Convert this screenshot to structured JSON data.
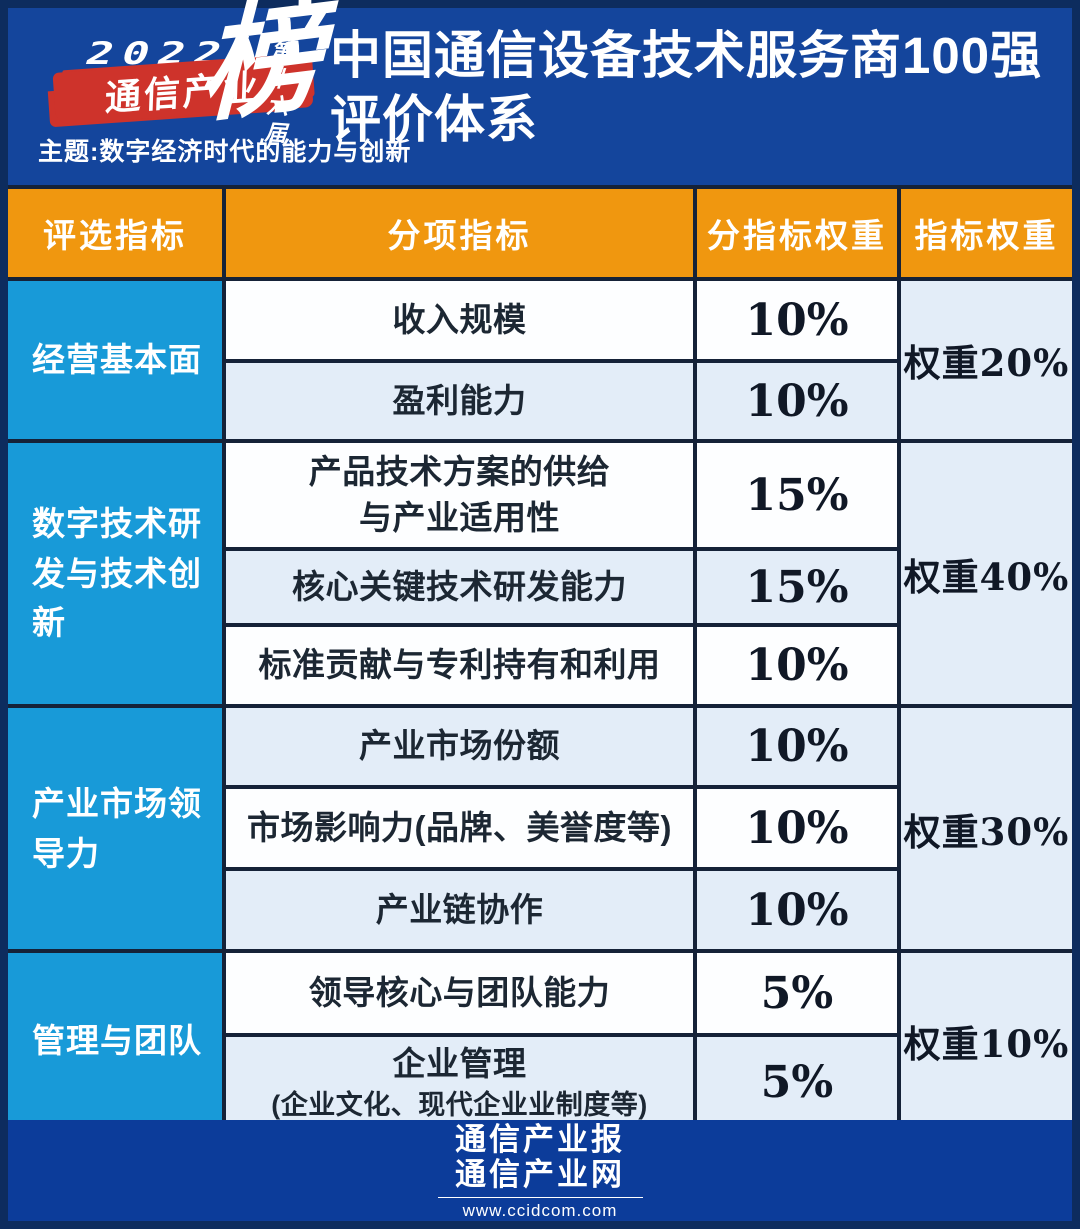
{
  "hero": {
    "logo": {
      "year": "2022",
      "brand": "通信产业",
      "bang": "榜",
      "edition": "第十六届",
      "theme": "主题:数字经济时代的能力与创新"
    },
    "title_line1": "中国通信设备技术服务商100强",
    "title_line2": "评价体系"
  },
  "table": {
    "headers": [
      "评选指标",
      "分项指标",
      "分指标权重",
      "指标权重"
    ],
    "groups": [
      {
        "category": "经营基本面",
        "weight": "权重20%",
        "rows": [
          {
            "label": "收入规模",
            "value": "10%"
          },
          {
            "label": "盈利能力",
            "value": "10%"
          }
        ]
      },
      {
        "category": "数字技术研\n发与技术创\n新",
        "weight": "权重40%",
        "rows": [
          {
            "label": "产品技术方案的供给\n与产业适用性",
            "value": "15%"
          },
          {
            "label": "核心关键技术研发能力",
            "value": "15%"
          },
          {
            "label": "标准贡献与专利持有和利用",
            "value": "10%"
          }
        ]
      },
      {
        "category": "产业市场领\n导力",
        "weight": "权重30%",
        "rows": [
          {
            "label": "产业市场份额",
            "value": "10%"
          },
          {
            "label": "市场影响力(品牌、美誉度等)",
            "value": "10%"
          },
          {
            "label": "产业链协作",
            "value": "10%"
          }
        ]
      },
      {
        "category": "管理与团队",
        "weight": "权重10%",
        "rows": [
          {
            "label": "领导核心与团队能力",
            "value": "5%"
          },
          {
            "label": "企业管理",
            "sublabel": "(企业文化、现代企业业制度等)",
            "value": "5%"
          }
        ]
      }
    ]
  },
  "footer": {
    "brand1": "通信产业报",
    "brand2": "通信产业网",
    "url": "www.ccidcom.com"
  },
  "colors": {
    "header_orange": "#f0970f",
    "category_cyan": "#189ad8",
    "hero_blue": "#14459c",
    "footer_blue": "#0c3c9a",
    "banner_red": "#ce332b",
    "row_alt_blue": "#e3edf8",
    "border_navy": "#152238"
  }
}
